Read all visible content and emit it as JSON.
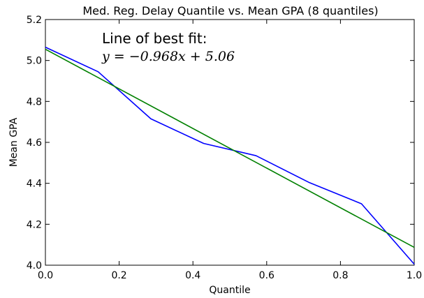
{
  "chart_data": {
    "type": "line",
    "title": "Med. Reg. Delay Quantile vs. Mean GPA (8 quantiles)",
    "xlabel": "Quantile",
    "ylabel": "Mean GPA",
    "xlim": [
      0.0,
      1.0
    ],
    "ylim": [
      4.0,
      5.2
    ],
    "x_ticks": [
      "0.0",
      "0.2",
      "0.4",
      "0.6",
      "0.8",
      "1.0"
    ],
    "y_ticks": [
      "4.0",
      "4.2",
      "4.4",
      "4.6",
      "4.8",
      "5.0",
      "5.2"
    ],
    "grid": false,
    "series": [
      {
        "color": "#0000ff",
        "x": [
          0.0,
          0.143,
          0.286,
          0.429,
          0.571,
          0.714,
          0.857,
          1.0
        ],
        "y": [
          5.065,
          4.945,
          4.715,
          4.595,
          4.535,
          4.405,
          4.3,
          4.005
        ]
      },
      {
        "color": "#008000",
        "x": [
          0.0,
          1.0
        ],
        "y": [
          5.055,
          4.087
        ]
      }
    ],
    "annotation": {
      "heading": "Line of best fit:",
      "equation": "y = −0.968x + 5.06"
    }
  }
}
